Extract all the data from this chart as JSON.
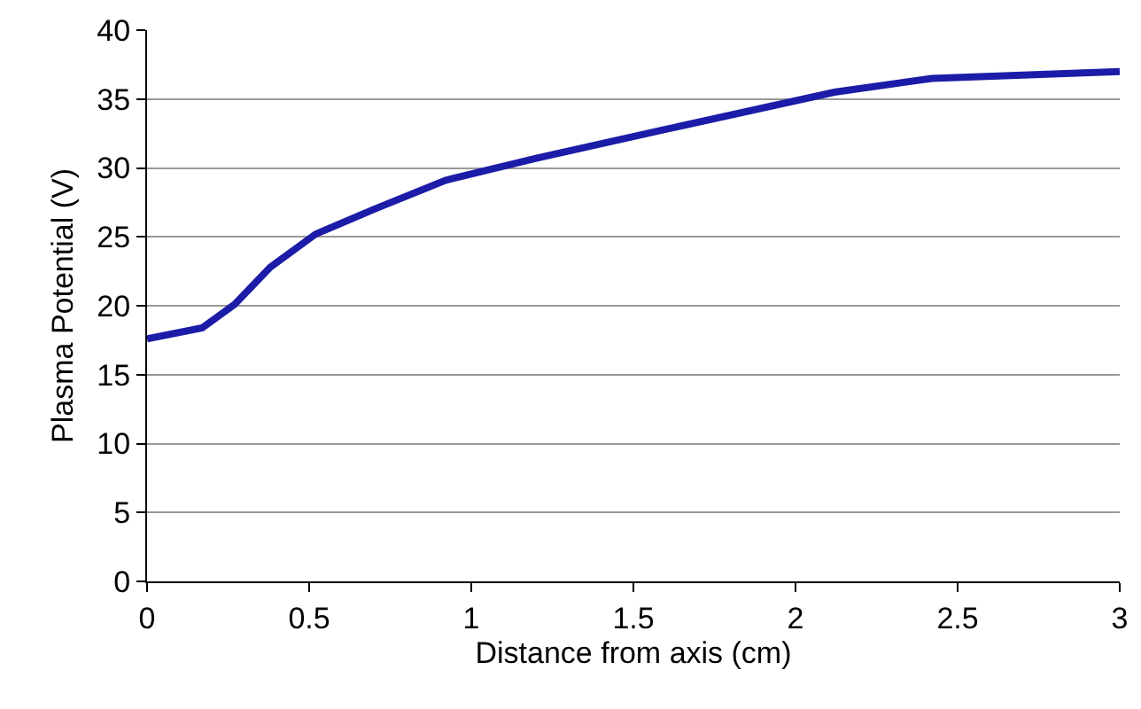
{
  "chart_data": {
    "type": "line",
    "xlabel": "Distance from axis (cm)",
    "ylabel": "Plasma Potential (V)",
    "x": [
      0,
      0.17,
      0.27,
      0.38,
      0.52,
      0.7,
      0.92,
      1.2,
      1.6,
      2.12,
      2.42,
      3
    ],
    "series": [
      {
        "color": "#1c1ca8",
        "values": [
          17.6,
          18.4,
          20.1,
          22.8,
          25.2,
          27.0,
          29.1,
          30.7,
          32.8,
          35.5,
          36.5,
          37.0
        ]
      }
    ],
    "xlim": [
      0,
      3
    ],
    "xticks": [
      0,
      0.5,
      1,
      1.5,
      2,
      2.5,
      3
    ],
    "ylim": [
      0,
      40
    ],
    "yticks": [
      0,
      5,
      10,
      15,
      20,
      25,
      30,
      35,
      40
    ],
    "grid": "y",
    "legend": false,
    "marker": "none",
    "line_style": "solid"
  }
}
